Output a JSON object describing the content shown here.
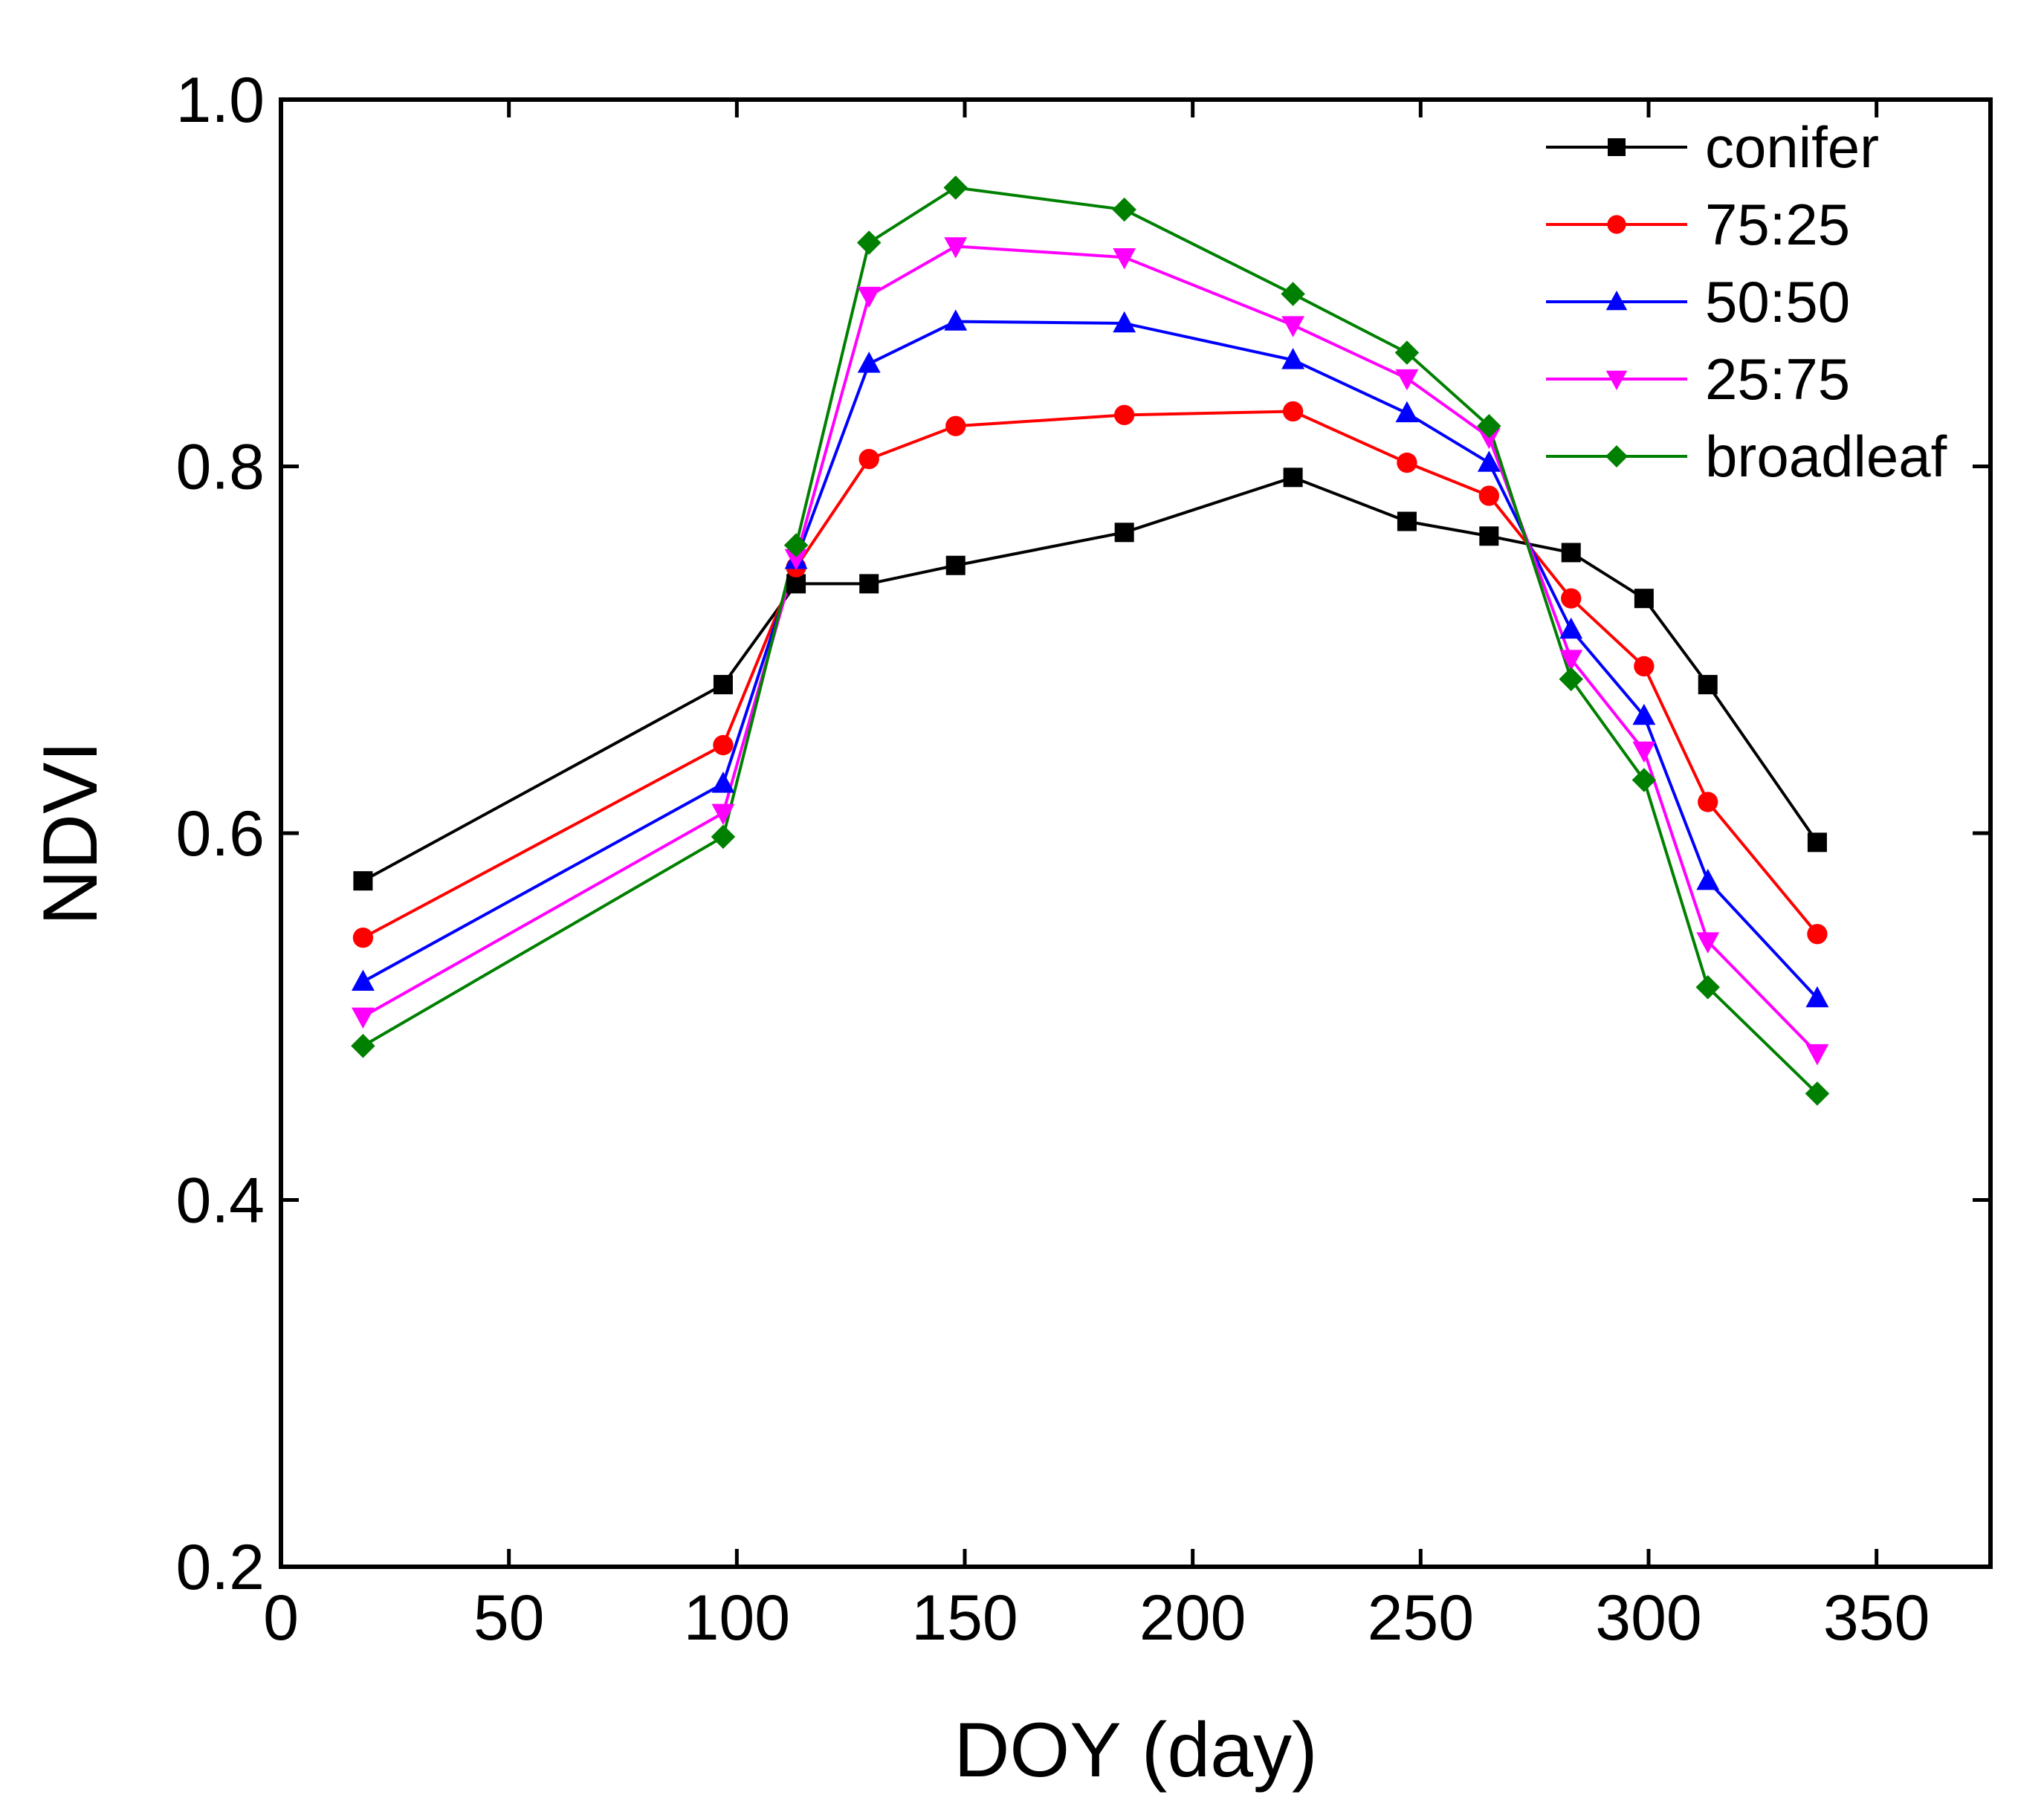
{
  "chart_data": {
    "type": "line",
    "title": "",
    "xlabel": "DOY (day)",
    "ylabel": "NDVI",
    "xlim": [
      0,
      375
    ],
    "ylim": [
      0.2,
      1.0
    ],
    "xticks": [
      0,
      50,
      100,
      150,
      200,
      250,
      300,
      350
    ],
    "yticks": [
      0.2,
      0.4,
      0.6,
      0.8,
      1.0
    ],
    "xtick_labels": [
      "0",
      "50",
      "100",
      "150",
      "200",
      "250",
      "300",
      "350"
    ],
    "ytick_labels": [
      "0.2",
      "0.4",
      "0.6",
      "0.8",
      "1.0"
    ],
    "grid": false,
    "legend_position": "top-right",
    "x": [
      18,
      97,
      113,
      129,
      148,
      185,
      222,
      247,
      265,
      283,
      299,
      313,
      337
    ],
    "series": [
      {
        "name": "conifer",
        "color": "#000000",
        "marker": "square",
        "values": [
          0.574,
          0.681,
          0.736,
          0.736,
          0.746,
          0.764,
          0.794,
          0.77,
          0.762,
          0.753,
          0.728,
          0.681,
          0.595
        ]
      },
      {
        "name": "75:25",
        "color": "#ff0000",
        "marker": "circle",
        "values": [
          0.543,
          0.648,
          0.745,
          0.804,
          0.822,
          0.828,
          0.83,
          0.802,
          0.784,
          0.728,
          0.691,
          0.617,
          0.545
        ]
      },
      {
        "name": "50:50",
        "color": "#0000ff",
        "marker": "triangle-up",
        "values": [
          0.519,
          0.627,
          0.749,
          0.856,
          0.879,
          0.878,
          0.858,
          0.829,
          0.802,
          0.711,
          0.664,
          0.574,
          0.51
        ]
      },
      {
        "name": "25:75",
        "color": "#ff00ff",
        "marker": "triangle-down",
        "values": [
          0.5,
          0.611,
          0.75,
          0.893,
          0.92,
          0.914,
          0.877,
          0.848,
          0.816,
          0.695,
          0.645,
          0.541,
          0.48
        ]
      },
      {
        "name": "broadleaf",
        "color": "#008000",
        "marker": "diamond",
        "values": [
          0.484,
          0.598,
          0.757,
          0.922,
          0.952,
          0.94,
          0.894,
          0.862,
          0.822,
          0.684,
          0.629,
          0.516,
          0.458
        ]
      }
    ]
  }
}
